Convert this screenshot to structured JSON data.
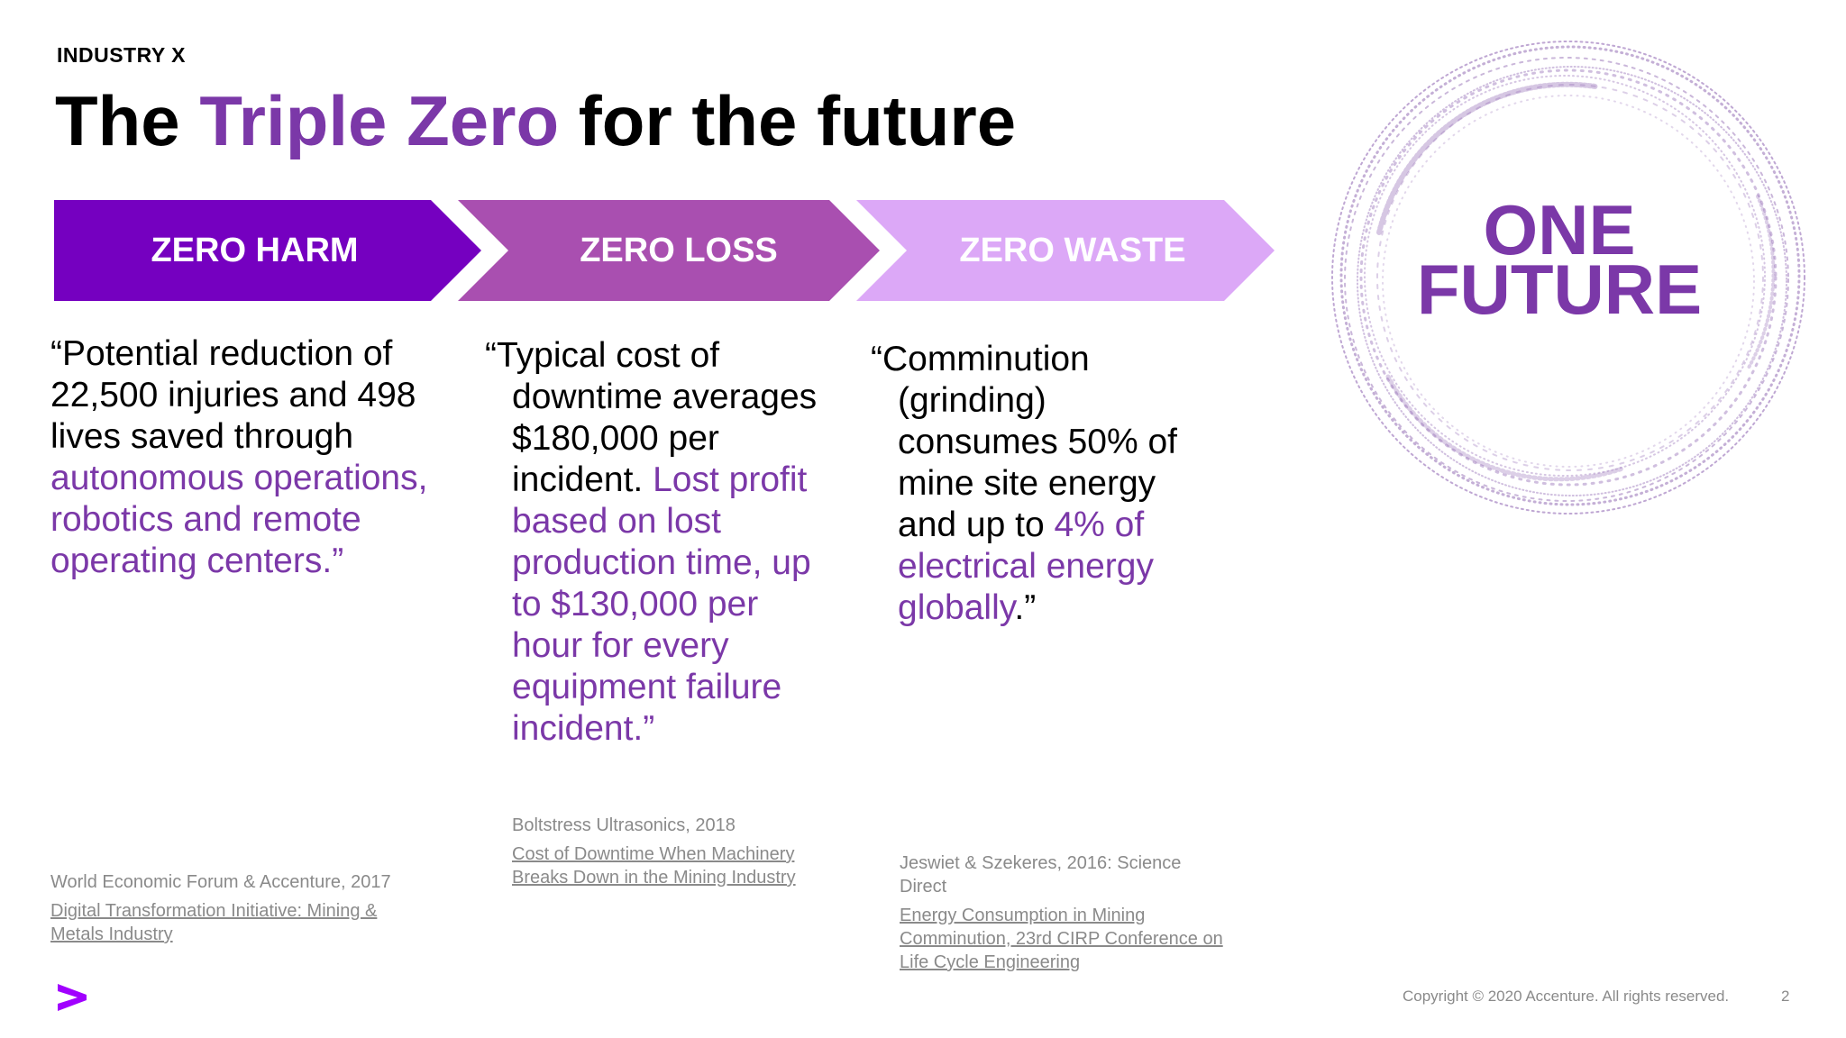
{
  "header": {
    "eyebrow": "INDUSTRY X",
    "title_pre": "The ",
    "title_accent": "Triple Zero",
    "title_post": " for the future"
  },
  "chevrons": [
    {
      "label": "ZERO HARM",
      "color": "#7500c0"
    },
    {
      "label": "ZERO LOSS",
      "color": "#a94fb0"
    },
    {
      "label": "ZERO WASTE",
      "color": "#dca8f7"
    }
  ],
  "columns": [
    {
      "quote_plain": "“Potential reduction of 22,500 injuries and 498 lives saved through ",
      "quote_highlight": "autonomous operations, robotics and remote operating centers.",
      "quote_end": "”",
      "source_name": "World Economic Forum & Accenture, 2017",
      "source_link": "Digital Transformation Initiative: Mining & Metals Industry"
    },
    {
      "quote_open": "“Typical cost of",
      "quote_plain": "downtime averages $180,000 per incident. ",
      "quote_highlight": "Lost profit based on lost production time, up to $130,000 per hour for every equipment failure incident.”",
      "source_name": "Boltstress Ultrasonics, 2018",
      "source_link": "Cost of Downtime When Machinery Breaks Down in the Mining Industry"
    },
    {
      "quote_open": "“Comminution",
      "quote_plain": "(grinding) consumes 50% of mine site energy and up to ",
      "quote_highlight": "4% of electrical energy globally",
      "quote_end": ".”",
      "source_name": "Jeswiet & Szekeres, 2016: Science Direct",
      "source_link": "Energy Consumption in Mining Comminution, 23rd CIRP Conference on Life Cycle Engineering"
    }
  ],
  "badge": {
    "line1": "ONE",
    "line2": "FUTURE",
    "color": "#7b38a8"
  },
  "footer": {
    "copyright": "Copyright © 2020 Accenture. All rights reserved.",
    "page_number": "2"
  }
}
